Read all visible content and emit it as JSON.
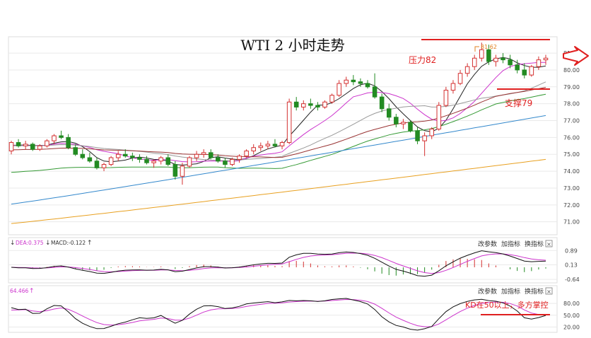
{
  "chart_data": {
    "type": "candlestick",
    "title": "WTI 2 小时走势",
    "price_axis": {
      "ticks": [
        "81.00",
        "80.00",
        "79.00",
        "78.00",
        "77.00",
        "76.00",
        "75.00",
        "74.00",
        "73.00",
        "72.00",
        "71.00"
      ],
      "ylim": [
        70.4,
        81.8
      ]
    },
    "annotations": {
      "peak_label": "81.62",
      "resistance_label": "压力82",
      "support_label": "支撑79",
      "kd_note": "KD在50以上，多方掌控"
    },
    "macd_panel": {
      "dea_label": "DEA:0.375",
      "macd_label": "MACD:-0.122",
      "ticks": [
        "0.89",
        "0.13",
        "-0.64"
      ],
      "ylim": [
        -0.75,
        1.05
      ]
    },
    "kd_panel": {
      "value_label": "64.466",
      "ticks": [
        "80.00",
        "50.00",
        "20.00"
      ],
      "ylim": [
        10,
        100
      ]
    },
    "panel_buttons": [
      "改参数",
      "加指标",
      "换指标"
    ],
    "close_symbol": "×",
    "candles": [
      [
        75.2,
        75.8,
        75.0,
        75.7
      ],
      [
        75.7,
        75.9,
        75.4,
        75.5
      ],
      [
        75.5,
        75.8,
        75.3,
        75.6
      ],
      [
        75.6,
        75.7,
        75.2,
        75.3
      ],
      [
        75.3,
        75.6,
        75.2,
        75.5
      ],
      [
        75.5,
        75.9,
        75.4,
        75.8
      ],
      [
        75.8,
        76.2,
        75.6,
        76.1
      ],
      [
        76.1,
        76.4,
        75.9,
        76.0
      ],
      [
        76.0,
        76.2,
        75.3,
        75.4
      ],
      [
        75.4,
        75.6,
        74.9,
        75.0
      ],
      [
        75.0,
        75.3,
        74.7,
        74.8
      ],
      [
        74.8,
        75.1,
        74.5,
        74.6
      ],
      [
        74.6,
        74.8,
        74.1,
        74.2
      ],
      [
        74.2,
        74.5,
        74.0,
        74.4
      ],
      [
        74.4,
        74.9,
        74.3,
        74.8
      ],
      [
        74.8,
        75.2,
        74.6,
        75.0
      ],
      [
        75.0,
        75.3,
        74.8,
        74.9
      ],
      [
        74.9,
        75.1,
        74.6,
        74.8
      ],
      [
        74.8,
        75.0,
        74.5,
        74.7
      ],
      [
        74.7,
        74.9,
        74.4,
        74.5
      ],
      [
        74.5,
        74.7,
        74.2,
        74.6
      ],
      [
        74.6,
        74.9,
        74.4,
        74.8
      ],
      [
        74.8,
        75.0,
        74.3,
        74.4
      ],
      [
        74.4,
        74.6,
        73.5,
        73.7
      ],
      [
        73.7,
        74.5,
        73.2,
        74.3
      ],
      [
        74.3,
        74.9,
        74.2,
        74.8
      ],
      [
        74.8,
        75.2,
        74.6,
        75.0
      ],
      [
        75.0,
        75.3,
        74.8,
        75.1
      ],
      [
        75.1,
        75.3,
        74.7,
        74.8
      ],
      [
        74.8,
        75.0,
        74.5,
        74.6
      ],
      [
        74.6,
        74.8,
        74.2,
        74.4
      ],
      [
        74.4,
        74.8,
        74.3,
        74.7
      ],
      [
        74.7,
        75.0,
        74.5,
        74.9
      ],
      [
        74.9,
        75.3,
        74.8,
        75.2
      ],
      [
        75.2,
        75.6,
        75.0,
        75.4
      ],
      [
        75.4,
        75.7,
        75.2,
        75.5
      ],
      [
        75.5,
        75.8,
        75.3,
        75.6
      ],
      [
        75.6,
        75.9,
        75.4,
        75.5
      ],
      [
        75.5,
        75.8,
        75.3,
        75.7
      ],
      [
        75.7,
        78.3,
        75.6,
        78.1
      ],
      [
        78.1,
        78.4,
        77.6,
        77.8
      ],
      [
        77.8,
        78.2,
        77.6,
        78.0
      ],
      [
        78.0,
        78.3,
        77.7,
        77.9
      ],
      [
        77.9,
        78.1,
        77.6,
        77.8
      ],
      [
        77.8,
        78.2,
        77.7,
        78.1
      ],
      [
        78.1,
        78.6,
        78.0,
        78.5
      ],
      [
        78.5,
        79.4,
        78.4,
        79.2
      ],
      [
        79.2,
        79.6,
        79.0,
        79.4
      ],
      [
        79.4,
        79.7,
        79.1,
        79.3
      ],
      [
        79.3,
        79.5,
        79.0,
        79.2
      ],
      [
        79.2,
        79.4,
        78.9,
        79.0
      ],
      [
        79.0,
        79.8,
        78.3,
        78.4
      ],
      [
        78.4,
        78.6,
        77.5,
        77.7
      ],
      [
        77.7,
        78.0,
        77.0,
        77.2
      ],
      [
        77.2,
        77.4,
        76.6,
        76.8
      ],
      [
        76.8,
        77.1,
        76.5,
        76.9
      ],
      [
        76.9,
        77.0,
        76.3,
        76.4
      ],
      [
        76.4,
        76.6,
        75.6,
        75.8
      ],
      [
        75.8,
        76.3,
        74.9,
        76.1
      ],
      [
        76.1,
        76.6,
        75.9,
        76.5
      ],
      [
        76.5,
        78.1,
        76.4,
        77.9
      ],
      [
        77.9,
        79.0,
        77.8,
        78.8
      ],
      [
        78.8,
        79.4,
        78.6,
        79.2
      ],
      [
        79.2,
        80.0,
        79.1,
        79.8
      ],
      [
        79.8,
        80.4,
        79.6,
        80.2
      ],
      [
        80.2,
        80.9,
        80.0,
        80.7
      ],
      [
        80.7,
        81.62,
        80.5,
        81.2
      ],
      [
        81.2,
        81.5,
        80.3,
        80.5
      ],
      [
        80.5,
        80.9,
        80.2,
        80.7
      ],
      [
        80.7,
        81.0,
        80.4,
        80.6
      ],
      [
        80.6,
        80.9,
        80.1,
        80.3
      ],
      [
        80.3,
        80.6,
        79.8,
        80.0
      ],
      [
        80.0,
        80.4,
        79.5,
        79.7
      ],
      [
        79.7,
        80.3,
        79.6,
        80.2
      ],
      [
        80.2,
        80.8,
        80.0,
        80.6
      ],
      [
        80.6,
        80.9,
        80.3,
        80.7
      ]
    ],
    "moving_averages": [
      {
        "color": "#222222",
        "period": 5
      },
      {
        "color": "#cc33cc",
        "period": 10
      },
      {
        "color": "#999999",
        "period": 20
      },
      {
        "color": "#993333",
        "period": 30
      },
      {
        "color": "#339933",
        "period": 60
      },
      {
        "color": "#3388cc",
        "period": 120
      },
      {
        "color": "#e8a020",
        "period": 250
      }
    ],
    "colors": {
      "up": "#d43030",
      "down": "#228b22",
      "annotation": "#e02020",
      "grid": "#eaeaea",
      "dif": "#111111",
      "dea": "#cc33cc",
      "k": "#111111",
      "d": "#cc33cc"
    }
  }
}
